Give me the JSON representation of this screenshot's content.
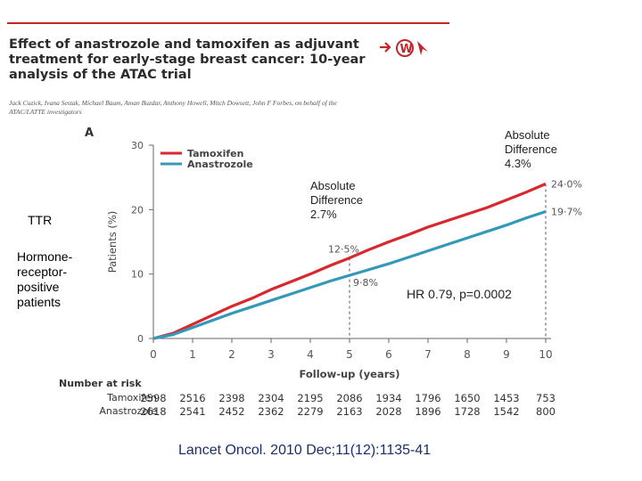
{
  "header": {
    "title": "Effect of anastrozole and tamoxifen as adjuvant treatment for early-stage breast cancer: 10-year analysis of the ATAC trial",
    "authors": "Jack Cuzick, Ivana Sestak, Michael Baum, Aman Buzdar, Anthony Howell, Mitch Dowsett, John F Forbes, on behalf of the ATAC/LATTE investigators"
  },
  "side_labels": {
    "ttr": "TTR",
    "population": "Hormone-receptor-positive patients"
  },
  "annotations": {
    "diff_5yr": "Absolute Difference 2.7%",
    "diff_10yr": "Absolute Difference 4.3%",
    "hr": "HR 0.79, p=0.0002"
  },
  "citation": "Lancet Oncol. 2010 Dec;11(12):1135-41",
  "chart_data": {
    "type": "line",
    "panel": "A",
    "xlabel": "Follow-up (years)",
    "ylabel": "Patients (%)",
    "xlim": [
      0,
      10
    ],
    "ylim": [
      0,
      30
    ],
    "x_ticks": [
      "0",
      "1",
      "2",
      "3",
      "4",
      "5",
      "6",
      "7",
      "8",
      "9",
      "10"
    ],
    "y_ticks": [
      "0",
      "10",
      "20",
      "30"
    ],
    "legend_position": "top-left",
    "series": [
      {
        "name": "Tamoxifen",
        "color": "#d9272e",
        "x": [
          0,
          0.5,
          1,
          1.5,
          2,
          2.5,
          3,
          3.5,
          4,
          4.5,
          5,
          5.5,
          6,
          6.5,
          7,
          7.5,
          8,
          8.5,
          9,
          9.5,
          10
        ],
        "y": [
          0,
          0.8,
          2.2,
          3.6,
          5.0,
          6.2,
          7.6,
          8.8,
          10.0,
          11.3,
          12.5,
          13.8,
          15.0,
          16.1,
          17.3,
          18.3,
          19.3,
          20.3,
          21.5,
          22.7,
          24.0
        ],
        "end_label": "24·0%",
        "mid_label": "12·5%"
      },
      {
        "name": "Anastrozole",
        "color": "#3498b8",
        "x": [
          0,
          0.5,
          1,
          1.5,
          2,
          2.5,
          3,
          3.5,
          4,
          4.5,
          5,
          5.5,
          6,
          6.5,
          7,
          7.5,
          8,
          8.5,
          9,
          9.5,
          10
        ],
        "y": [
          0,
          0.6,
          1.7,
          2.8,
          3.9,
          4.9,
          5.9,
          6.9,
          7.9,
          8.9,
          9.8,
          10.7,
          11.6,
          12.6,
          13.6,
          14.6,
          15.6,
          16.6,
          17.6,
          18.7,
          19.7
        ],
        "end_label": "19·7%",
        "mid_label": "9·8%"
      }
    ],
    "reference_lines_x": [
      5,
      10
    ],
    "risk_table": {
      "title": "Number at risk",
      "rows": [
        {
          "name": "Tamoxifen",
          "values": [
            "2598",
            "2516",
            "2398",
            "2304",
            "2195",
            "2086",
            "1934",
            "1796",
            "1650",
            "1453",
            "753"
          ]
        },
        {
          "name": "Anastrozole",
          "values": [
            "2618",
            "2541",
            "2452",
            "2362",
            "2279",
            "2163",
            "2028",
            "1896",
            "1728",
            "1542",
            "800"
          ]
        }
      ]
    }
  }
}
